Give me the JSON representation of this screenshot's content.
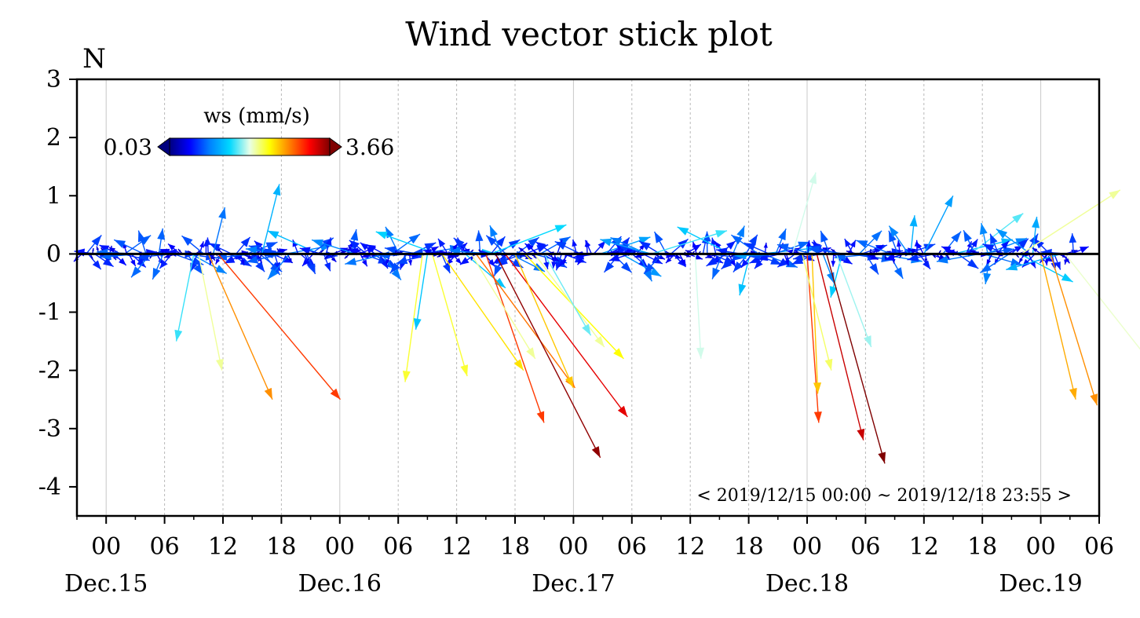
{
  "chart_data": {
    "type": "vector",
    "title": "Wind vector stick plot",
    "ylabel": "N",
    "ylim": [
      -4.5,
      3
    ],
    "y_ticks": [
      "3",
      "2",
      "1",
      "0",
      "-1",
      "-2",
      "-3",
      "-4"
    ],
    "x_ticks": [
      "00",
      "06",
      "12",
      "18",
      "00",
      "06",
      "12",
      "18",
      "00",
      "06",
      "12",
      "18",
      "00",
      "06",
      "12",
      "18",
      "00",
      "06"
    ],
    "date_labels": [
      "Dec.15",
      "Dec.16",
      "Dec.17",
      "Dec.18",
      "Dec.19"
    ],
    "xlim_hours": [
      -3,
      102
    ],
    "grid": "vertical dotted every 6 hours",
    "colorbar": {
      "title": "ws (mm/s)",
      "min": "0.03",
      "max": "3.66",
      "colormap": [
        "#00007f",
        "#0000ff",
        "#0080ff",
        "#00d8ff",
        "#e8ffe8",
        "#ffff00",
        "#ff8000",
        "#ff0000",
        "#7f0000"
      ]
    },
    "time_range": "< 2019/12/15 00:00 ~ 2019/12/18 23:55 >",
    "notable_vectors": [
      {
        "t_hours": 9.5,
        "u": 0.4,
        "v": -2.0,
        "ws": 2.0
      },
      {
        "t_hours": 10.5,
        "u": 1.1,
        "v": -2.5,
        "ws": 2.7
      },
      {
        "t_hours": 11.5,
        "u": 2.1,
        "v": -2.5,
        "ws": 3.0
      },
      {
        "t_hours": 9.0,
        "u": -0.3,
        "v": -1.5,
        "ws": 1.5
      },
      {
        "t_hours": 32.5,
        "u": -0.3,
        "v": -2.2,
        "ws": 2.2
      },
      {
        "t_hours": 33.5,
        "u": 0.6,
        "v": -2.1,
        "ws": 2.2
      },
      {
        "t_hours": 34.5,
        "u": 1.4,
        "v": -2.0,
        "ws": 2.4
      },
      {
        "t_hours": 33.0,
        "u": -0.2,
        "v": -1.3,
        "ws": 1.3
      },
      {
        "t_hours": 38.0,
        "u": 1.7,
        "v": -2.3,
        "ws": 2.8
      },
      {
        "t_hours": 39.0,
        "u": 1.0,
        "v": -2.9,
        "ws": 3.0
      },
      {
        "t_hours": 40.0,
        "u": 1.8,
        "v": -3.5,
        "ws": 3.6
      },
      {
        "t_hours": 41.0,
        "u": 2.1,
        "v": -2.8,
        "ws": 3.3
      },
      {
        "t_hours": 42.0,
        "u": 1.0,
        "v": -2.3,
        "ws": 2.5
      },
      {
        "t_hours": 43.0,
        "u": 1.7,
        "v": -1.8,
        "ws": 2.3
      },
      {
        "t_hours": 44.0,
        "u": 1.2,
        "v": -1.6,
        "ws": 2.0
      },
      {
        "t_hours": 45.0,
        "u": 0.8,
        "v": -1.4,
        "ws": 1.6
      },
      {
        "t_hours": 37.5,
        "u": 1.1,
        "v": -1.8,
        "ws": 2.0
      },
      {
        "t_hours": 60.5,
        "u": 0.1,
        "v": -1.8,
        "ws": 1.8
      },
      {
        "t_hours": 72.0,
        "u": 0.2,
        "v": -2.9,
        "ws": 3.0
      },
      {
        "t_hours": 73.0,
        "u": 0.8,
        "v": -3.2,
        "ws": 3.4
      },
      {
        "t_hours": 74.0,
        "u": 1.0,
        "v": -3.6,
        "ws": 3.66
      },
      {
        "t_hours": 72.5,
        "u": 0.1,
        "v": -2.4,
        "ws": 2.5
      },
      {
        "t_hours": 71.5,
        "u": 0.5,
        "v": -2.0,
        "ws": 2.1
      },
      {
        "t_hours": 75.0,
        "u": 0.6,
        "v": -1.6,
        "ws": 1.7
      },
      {
        "t_hours": 96.0,
        "u": 0.6,
        "v": -2.5,
        "ws": 2.6
      },
      {
        "t_hours": 97.0,
        "u": 0.8,
        "v": -2.6,
        "ws": 2.7
      },
      {
        "t_hours": 98.5,
        "u": 1.5,
        "v": -1.9,
        "ws": 1.9
      },
      {
        "t_hours": 94.0,
        "u": 1.7,
        "v": 1.1,
        "ws": 2.0
      },
      {
        "t_hours": 84.0,
        "u": 0.5,
        "v": 1.0,
        "ws": 1.1
      },
      {
        "t_hours": 70.5,
        "u": 0.4,
        "v": 1.4,
        "ws": 1.8
      },
      {
        "t_hours": 56.0,
        "u": 1.3,
        "v": 0.4,
        "ws": 1.5
      },
      {
        "t_hours": 11.0,
        "u": 0.2,
        "v": 0.8,
        "ws": 0.9
      },
      {
        "t_hours": 16.0,
        "u": 0.3,
        "v": 1.2,
        "ws": 1.2
      },
      {
        "t_hours": 39.5,
        "u": 1.3,
        "v": 0.5,
        "ws": 1.4
      }
    ]
  }
}
